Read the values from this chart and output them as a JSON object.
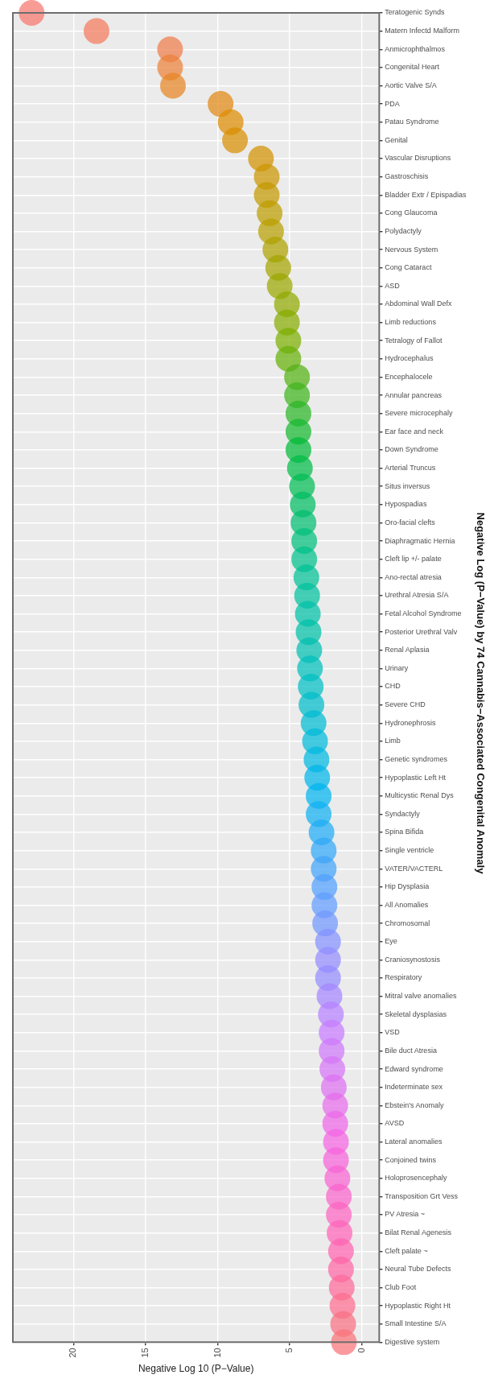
{
  "chart_data": {
    "type": "scatter",
    "orientation": "horizontal",
    "title": "Negative Log (P−Value) by 74 Cannabis−Associated Congenital Anomaly",
    "xlabel": "Negative Log 10 (P−Value)",
    "categories": [
      "Teratogenic Synds",
      "Matern Infectd Malform",
      "Anmicrophthalmos",
      "Congenital Heart",
      "Aortic Valve S/A",
      "PDA",
      "Patau Syndrome",
      "Genital",
      "Vascular Disruptions",
      "Gastroschisis",
      "Bladder Extr / Epispadias",
      "Cong Glaucoma",
      "Polydactyly",
      "Nervous System",
      "Cong Cataract",
      "ASD",
      "Abdominal Wall Defx",
      "Limb reductions",
      "Tetralogy of Fallot",
      "Hydrocephalus",
      "Encephalocele",
      "Annular pancreas",
      "Severe microcephaly",
      "Ear face and neck",
      "Down Syndrome",
      "Arterial Truncus",
      "Situs inversus",
      "Hypospadias",
      "Oro-facial clefts",
      "Diaphragmatic Hernia",
      "Cleft lip +/- palate",
      "Ano-rectal atresia",
      "Urethral Atresia S/A",
      "Fetal Alcohol Syndrome",
      "Posterior Urethral Valv",
      "Renal Aplasia",
      "Urinary",
      "CHD",
      "Severe CHD",
      "Hydronephrosis",
      "Limb",
      "Genetic syndromes",
      "Hypoplastic Left Ht",
      "Multicystic Renal Dys",
      "Syndactyly",
      "Spina Bifida",
      "Single ventricle",
      "VATER/VACTERL",
      "Hip Dysplasia",
      "All Anomalies",
      "Chromosomal",
      "Eye",
      "Craniosynostosis",
      "Respiratory",
      "Mitral valve anomalies",
      "Skeletal dysplasias",
      "VSD",
      "Bile duct Atresia",
      "Edward syndrome",
      "Indeterminate sex",
      "Ebstein's Anomaly",
      "AVSD",
      "Lateral anomalies",
      "Conjoined twins",
      "Holoprosencephaly",
      "Transposition Grt Vess",
      "PV Atresia ~",
      "Bilat Renal Agenesis",
      "Cleft palate ~",
      "Neural Tube Defects",
      "Club Foot",
      "Hypoplastic Right Ht",
      "Small Intestine S/A",
      "Digestive system"
    ],
    "values": [
      22.9,
      18.4,
      13.3,
      13.3,
      13.1,
      9.8,
      9.1,
      8.8,
      7.0,
      6.6,
      6.6,
      6.4,
      6.3,
      6.0,
      5.8,
      5.7,
      5.2,
      5.2,
      5.1,
      5.1,
      4.5,
      4.5,
      4.4,
      4.4,
      4.4,
      4.3,
      4.15,
      4.1,
      4.05,
      4.0,
      4.0,
      3.85,
      3.8,
      3.75,
      3.7,
      3.65,
      3.6,
      3.55,
      3.5,
      3.35,
      3.25,
      3.15,
      3.1,
      3.0,
      3.0,
      2.8,
      2.65,
      2.65,
      2.6,
      2.6,
      2.55,
      2.35,
      2.35,
      2.35,
      2.25,
      2.15,
      2.1,
      2.1,
      2.05,
      1.95,
      1.85,
      1.85,
      1.8,
      1.8,
      1.7,
      1.6,
      1.6,
      1.55,
      1.45,
      1.45,
      1.4,
      1.35,
      1.3,
      1.25
    ],
    "colors": [
      "#f8766d",
      "#f47a5b",
      "#ef7d49",
      "#eb8137",
      "#e78524",
      "#e28812",
      "#de8c00",
      "#d88f00",
      "#d19200",
      "#cb9600",
      "#c49900",
      "#be9c00",
      "#b79f00",
      "#ada200",
      "#a3a400",
      "#9aa700",
      "#90a900",
      "#86ac00",
      "#7cae00",
      "#67b009",
      "#53b213",
      "#3eb41c",
      "#29b625",
      "#15b82f",
      "#00ba38",
      "#00bb46",
      "#00bc54",
      "#00bd62",
      "#00be6f",
      "#00bf7d",
      "#00c08b",
      "#00c095",
      "#00c09e",
      "#00c0a8",
      "#00c0a8",
      "#00bfb1",
      "#00bfbb",
      "#00bfc4",
      "#00bdcb",
      "#00bbd3",
      "#00bada",
      "#00b8e1",
      "#00b6e9",
      "#00b4f0",
      "#10b0f3",
      "#20acf5",
      "#31a8f8",
      "#41a4fa",
      "#51a0fd",
      "#619cff",
      "#7297ff",
      "#8391ff",
      "#948cff",
      "#948cff",
      "#a587ff",
      "#b681ff",
      "#c77cff",
      "#cf78fa",
      "#d674f6",
      "#de70f1",
      "#e66cec",
      "#ed68e8",
      "#f564e3",
      "#f764db",
      "#f864d2",
      "#fa64ca",
      "#fc64c1",
      "#fd64b9",
      "#ff64b0",
      "#fe67a5",
      "#fd6a9a",
      "#fc6d8f",
      "#fa7083",
      "#f97378"
    ],
    "xlim": [
      24.2,
      -1.2
    ],
    "xticks": [
      20,
      15,
      10,
      5,
      0
    ],
    "grid": true,
    "marker": "circle"
  }
}
